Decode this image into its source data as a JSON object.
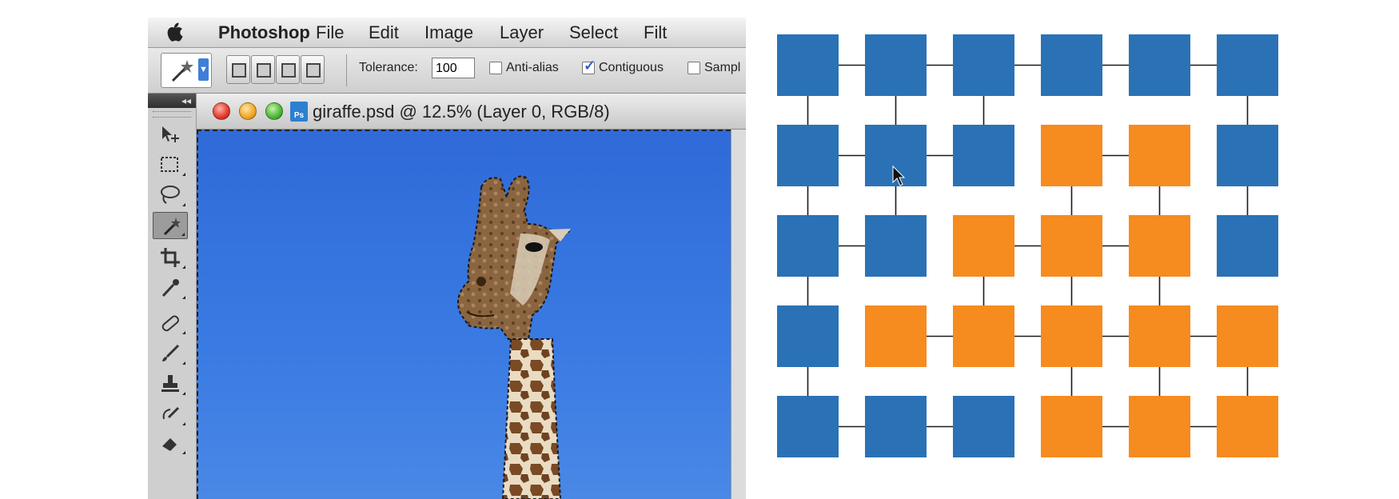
{
  "menubar": {
    "app_name": "Photoshop",
    "items": [
      "File",
      "Edit",
      "Image",
      "Layer",
      "Select",
      "Filt"
    ]
  },
  "options_bar": {
    "tolerance_label": "Tolerance:",
    "tolerance_value": "100",
    "anti_alias_label": "Anti-alias",
    "anti_alias_checked": false,
    "contiguous_label": "Contiguous",
    "contiguous_checked": true,
    "sample_label": "Sampl"
  },
  "document": {
    "title": "giraffe.psd @ 12.5% (Layer 0, RGB/8)",
    "file_icon_label": "Ps"
  },
  "toolbox": {
    "tools": [
      "move-tool-icon",
      "marquee-tool-icon",
      "lasso-tool-icon",
      "magic-wand-tool-icon",
      "crop-tool-icon",
      "eyedropper-tool-icon",
      "healing-brush-tool-icon",
      "brush-tool-icon",
      "clone-stamp-tool-icon",
      "history-brush-tool-icon",
      "eraser-tool-icon"
    ],
    "active_tool": "magic-wand-tool-icon"
  },
  "grid": {
    "colors": {
      "blue": "#2a72b5",
      "orange": "#f68b1f",
      "line": "#1a1a1a"
    },
    "rows": [
      [
        "blue",
        "blue",
        "blue",
        "blue",
        "blue",
        "blue"
      ],
      [
        "blue",
        "blue",
        "blue",
        "orange",
        "orange",
        "blue"
      ],
      [
        "blue",
        "blue",
        "orange",
        "orange",
        "orange",
        "blue"
      ],
      [
        "blue",
        "orange",
        "orange",
        "orange",
        "orange",
        "orange"
      ],
      [
        "blue",
        "blue",
        "blue",
        "orange",
        "orange",
        "orange"
      ]
    ]
  }
}
